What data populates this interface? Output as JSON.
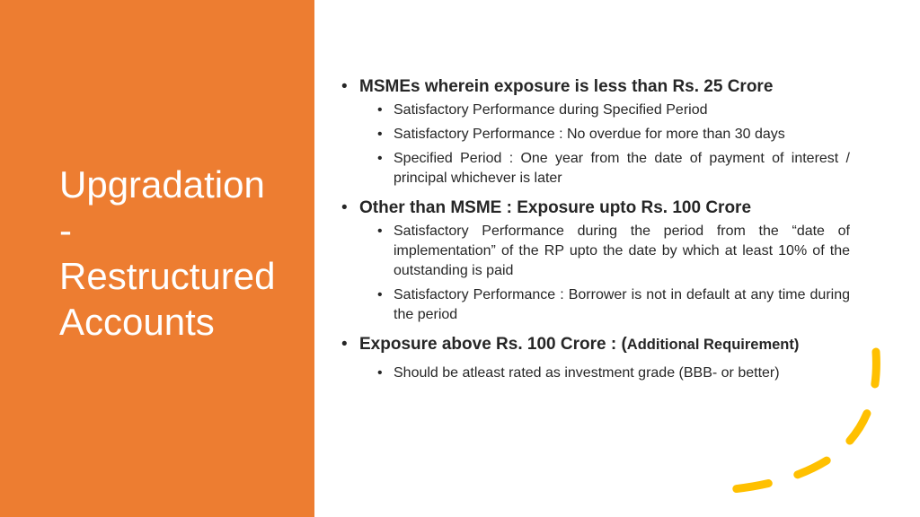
{
  "slide": {
    "title_lines": [
      "Upgradation",
      "-",
      "Restructured",
      "Accounts"
    ],
    "colors": {
      "panel": "#ED7D31",
      "accent_dash": "#FFC000",
      "text": "#262626"
    }
  },
  "bullets": [
    {
      "text": "MSMEs wherein exposure is less than Rs. 25 Crore",
      "sub": [
        "Satisfactory Performance during Specified Period",
        "Satisfactory Performance : No overdue for more than 30 days",
        "Specified Period : One year from the date of payment of interest / principal whichever is later"
      ]
    },
    {
      "text": "Other than MSME : Exposure upto Rs. 100 Crore",
      "sub": [
        "Satisfactory Performance during the period from the “date of implementation” of the RP upto the date by which at least 10% of the outstanding is paid",
        "Satisfactory Performance : Borrower is not in default at any time during the period"
      ]
    },
    {
      "text": "Exposure above Rs. 100 Crore : (",
      "text_small": "Additional Requirement)",
      "sub": [
        "Should be atleast rated as investment grade (BBB- or better)"
      ]
    }
  ],
  "bullet_char": "•",
  "decoration": {
    "name": "dashed-curve",
    "icon": "dashed-arc-icon"
  }
}
